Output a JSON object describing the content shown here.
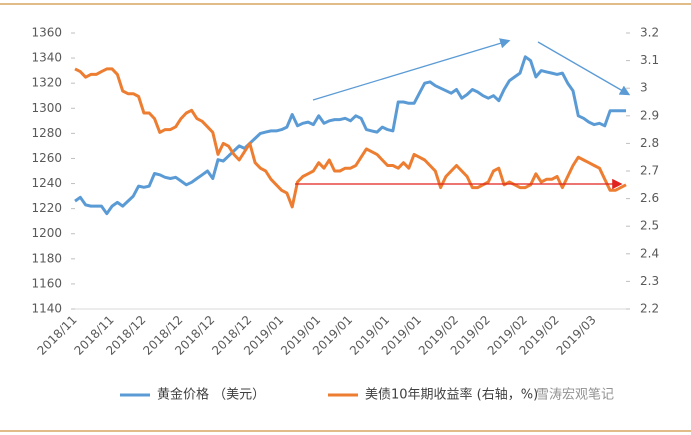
{
  "chart_data": {
    "type": "line",
    "categories": [
      "2018/11",
      null,
      null,
      null,
      null,
      null,
      null,
      "2018/11",
      null,
      null,
      null,
      null,
      null,
      "2018/12",
      null,
      null,
      null,
      null,
      null,
      null,
      "2018/12",
      null,
      null,
      null,
      null,
      null,
      "2018/12",
      null,
      null,
      null,
      null,
      null,
      null,
      "2018/12",
      null,
      null,
      null,
      null,
      null,
      "2019/01",
      null,
      null,
      null,
      null,
      null,
      null,
      "2019/01",
      null,
      null,
      null,
      null,
      null,
      "2019/01",
      null,
      null,
      null,
      null,
      null,
      null,
      "2019/01",
      null,
      null,
      null,
      null,
      null,
      "2019/01",
      null,
      null,
      null,
      null,
      null,
      null,
      "2019/02",
      null,
      null,
      null,
      null,
      null,
      "2019/02",
      null,
      null,
      null,
      null,
      null,
      null,
      "2019/02",
      null,
      null,
      null,
      null,
      null,
      "2019/02",
      null,
      null,
      null,
      null,
      null,
      null,
      "2019/03",
      null,
      null,
      null,
      null,
      null,
      null
    ],
    "series": [
      {
        "name": "黄金价格 （美元）",
        "color": "#5b9bd5",
        "values": [
          1226,
          1229,
          1223,
          1222,
          1222,
          1222,
          1216,
          1222,
          1225,
          1222,
          1226,
          1230,
          1238,
          1237,
          1238,
          1248,
          1247,
          1245,
          1244,
          1245,
          1242,
          1239,
          1241,
          1244,
          1247,
          1250,
          1244,
          1259,
          1258,
          1262,
          1266,
          1270,
          1268,
          1272,
          1276,
          1280,
          1281,
          1282,
          1282,
          1283,
          1285,
          1295,
          1286,
          1288,
          1289,
          1287,
          1294,
          1288,
          1290,
          1291,
          1291,
          1292,
          1290,
          1294,
          1292,
          1283,
          1282,
          1281,
          1285,
          1283,
          1282,
          1305,
          1305,
          1304,
          1304,
          1312,
          1320,
          1321,
          1318,
          1316,
          1314,
          1312,
          1315,
          1308,
          1311,
          1315,
          1313,
          1310,
          1308,
          1310,
          1306,
          1315,
          1322,
          1325,
          1328,
          1341,
          1338,
          1325,
          1330,
          1329,
          1328,
          1327,
          1328,
          1320,
          1314,
          1294,
          1292,
          1289,
          1287,
          1288,
          1286,
          1298,
          1298,
          1298,
          1298
        ]
      },
      {
        "name": "美债10年期收益率 (右轴，%)",
        "color": "#ed7d31",
        "axis": "y2",
        "values": [
          3.07,
          3.06,
          3.04,
          3.05,
          3.05,
          3.06,
          3.07,
          3.07,
          3.05,
          2.99,
          2.98,
          2.98,
          2.97,
          2.91,
          2.91,
          2.89,
          2.84,
          2.85,
          2.85,
          2.86,
          2.89,
          2.91,
          2.92,
          2.89,
          2.88,
          2.86,
          2.84,
          2.76,
          2.8,
          2.79,
          2.76,
          2.74,
          2.77,
          2.8,
          2.73,
          2.71,
          2.7,
          2.67,
          2.65,
          2.63,
          2.62,
          2.57,
          2.66,
          2.68,
          2.69,
          2.7,
          2.73,
          2.71,
          2.74,
          2.7,
          2.7,
          2.71,
          2.71,
          2.72,
          2.75,
          2.78,
          2.77,
          2.76,
          2.74,
          2.72,
          2.72,
          2.71,
          2.73,
          2.71,
          2.76,
          2.75,
          2.74,
          2.72,
          2.7,
          2.64,
          2.68,
          2.7,
          2.72,
          2.7,
          2.68,
          2.64,
          2.64,
          2.65,
          2.66,
          2.7,
          2.71,
          2.65,
          2.66,
          2.65,
          2.64,
          2.64,
          2.65,
          2.69,
          2.66,
          2.67,
          2.67,
          2.68,
          2.64,
          2.68,
          2.72,
          2.75,
          2.74,
          2.73,
          2.72,
          2.71,
          2.67,
          2.63,
          2.63,
          2.64,
          2.65
        ]
      }
    ],
    "ylim": [
      1140,
      1360
    ],
    "yticks": [
      1140,
      1160,
      1180,
      1200,
      1220,
      1240,
      1260,
      1280,
      1300,
      1320,
      1340,
      1360
    ],
    "y2lim": [
      2.2,
      3.2
    ],
    "y2ticks": [
      2.2,
      2.3,
      2.4,
      2.5,
      2.6,
      2.7,
      2.8,
      2.9,
      3,
      3.1,
      3.2
    ],
    "watermark": "雪涛宏观笔记"
  }
}
